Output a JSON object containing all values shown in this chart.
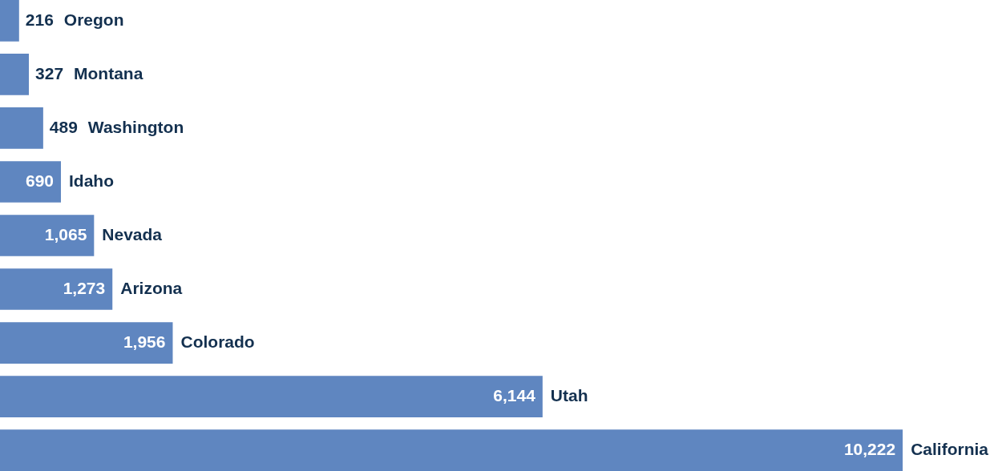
{
  "chart_data": {
    "type": "bar",
    "orientation": "horizontal",
    "categories": [
      "Oregon",
      "Montana",
      "Washington",
      "Idaho",
      "Nevada",
      "Arizona",
      "Colorado",
      "Utah",
      "California"
    ],
    "values": [
      216,
      327,
      489,
      690,
      1065,
      1273,
      1956,
      6144,
      10222
    ],
    "value_labels": [
      "216",
      "327",
      "489",
      "690",
      "1,065",
      "1,273",
      "1,956",
      "6,144",
      "10,222"
    ],
    "color": "#5f86c0"
  }
}
